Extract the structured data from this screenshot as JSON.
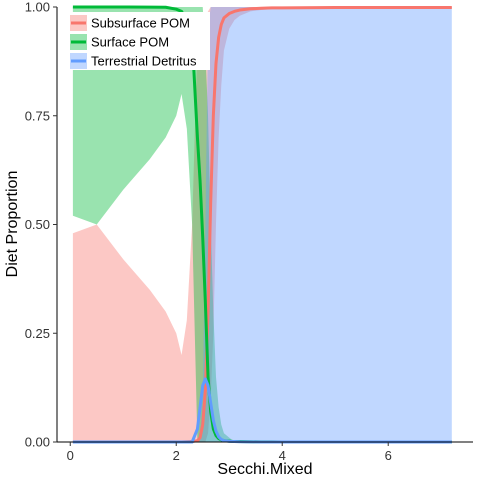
{
  "chart_data": {
    "type": "line",
    "title": "",
    "xlabel": "Secchi.Mixed",
    "ylabel": "Diet Proportion",
    "xlim": [
      -0.25,
      7.6
    ],
    "ylim": [
      0,
      1
    ],
    "x_ticks": [
      0,
      2,
      4,
      6
    ],
    "y_ticks": [
      0,
      0.25,
      0.5,
      0.75,
      1
    ],
    "x_tick_labels": [
      "0",
      "2",
      "4",
      "6"
    ],
    "y_tick_labels": [
      "0.00",
      "0.25",
      "0.50",
      "0.75",
      "1.00"
    ],
    "grid": false,
    "legend_position": "top-left",
    "x": [
      0.05,
      0.5,
      1.0,
      1.5,
      1.8,
      2.0,
      2.1,
      2.2,
      2.3,
      2.4,
      2.45,
      2.5,
      2.55,
      2.6,
      2.65,
      2.7,
      2.75,
      2.8,
      2.85,
      2.9,
      3.0,
      3.1,
      3.2,
      3.4,
      3.6,
      3.8,
      4.0,
      5.0,
      6.0,
      7.2
    ],
    "series": [
      {
        "name": "Subsurface POM",
        "color": "#F8766D",
        "values": [
          0.0001,
          0.0001,
          0.0001,
          0.0001,
          0.0001,
          0.0001,
          0.0001,
          0.0005,
          0.001,
          0.003,
          0.01,
          0.04,
          0.12,
          0.3,
          0.55,
          0.75,
          0.87,
          0.93,
          0.96,
          0.975,
          0.985,
          0.99,
          0.993,
          0.996,
          0.997,
          0.998,
          0.998,
          0.999,
          0.999,
          0.999
        ],
        "ribbon_lower": [
          0.0,
          0.0,
          0.0,
          0.0,
          0.0,
          0.0,
          0.0,
          0.0,
          0.0,
          0.0,
          0.0,
          0.0,
          0.0,
          0.02,
          0.1,
          0.25,
          0.5,
          0.7,
          0.82,
          0.9,
          0.95,
          0.97,
          0.98,
          0.99,
          0.993,
          0.995,
          0.996,
          0.998,
          0.998,
          0.998
        ],
        "ribbon_upper": [
          0.48,
          0.5,
          0.42,
          0.35,
          0.3,
          0.25,
          0.2,
          0.28,
          0.5,
          0.92,
          0.95,
          0.97,
          0.98,
          0.99,
          1.0,
          1.0,
          1.0,
          1.0,
          1.0,
          1.0,
          1.0,
          1.0,
          1.0,
          1.0,
          1.0,
          1.0,
          1.0,
          1.0,
          1.0,
          1.0
        ]
      },
      {
        "name": "Surface POM",
        "color": "#00BA38",
        "values": [
          0.9999,
          0.9999,
          0.9999,
          0.9998,
          0.9995,
          0.995,
          0.99,
          0.97,
          0.93,
          0.7,
          0.6,
          0.47,
          0.32,
          0.15,
          0.07,
          0.03,
          0.015,
          0.008,
          0.005,
          0.003,
          0.002,
          0.001,
          0.001,
          0.0005,
          0.0003,
          0.0002,
          0.0001,
          0.0001,
          0.0001,
          0.0001
        ],
        "ribbon_lower": [
          0.52,
          0.5,
          0.58,
          0.65,
          0.7,
          0.75,
          0.8,
          0.72,
          0.5,
          0.0,
          0.0,
          0.0,
          0.0,
          0.0,
          0.0,
          0.0,
          0.0,
          0.0,
          0.0,
          0.0,
          0.0,
          0.0,
          0.0,
          0.0,
          0.0,
          0.0,
          0.0,
          0.0,
          0.0,
          0.0
        ],
        "ribbon_upper": [
          1.0,
          1.0,
          1.0,
          1.0,
          1.0,
          1.0,
          1.0,
          1.0,
          1.0,
          1.0,
          1.0,
          1.0,
          0.9,
          0.75,
          0.5,
          0.3,
          0.15,
          0.08,
          0.04,
          0.02,
          0.01,
          0.0,
          0.0,
          0.0,
          0.0,
          0.0,
          0.0,
          0.0,
          0.0,
          0.0
        ]
      },
      {
        "name": "Terrestrial Detritus",
        "color": "#619CFF",
        "values": [
          0.0,
          0.0,
          0.0,
          0.0,
          0.0,
          0.0,
          0.0,
          0.0,
          0.0,
          0.03,
          0.08,
          0.13,
          0.145,
          0.13,
          0.09,
          0.05,
          0.025,
          0.012,
          0.006,
          0.003,
          0.0015,
          0.001,
          0.0005,
          0.0002,
          0.0001,
          0.0,
          0.0,
          0.0,
          0.0,
          0.0
        ],
        "ribbon_lower": [
          0.0,
          0.0,
          0.0,
          0.0,
          0.0,
          0.0,
          0.0,
          0.0,
          0.0,
          0.0,
          0.0,
          0.0,
          0.0,
          0.0,
          0.0,
          0.0,
          0.0,
          0.0,
          0.0,
          0.0,
          0.0,
          0.0,
          0.0,
          0.0,
          0.0,
          0.0,
          0.0,
          0.0,
          0.0,
          0.0
        ],
        "ribbon_upper": [
          0.0,
          0.0,
          0.0,
          0.0,
          0.0,
          0.0,
          0.0,
          0.0,
          0.0,
          0.0,
          0.02,
          0.1,
          0.5,
          0.95,
          1.0,
          1.0,
          1.0,
          1.0,
          1.0,
          1.0,
          1.0,
          1.0,
          1.0,
          1.0,
          1.0,
          1.0,
          1.0,
          1.0,
          1.0,
          1.0
        ]
      }
    ]
  }
}
